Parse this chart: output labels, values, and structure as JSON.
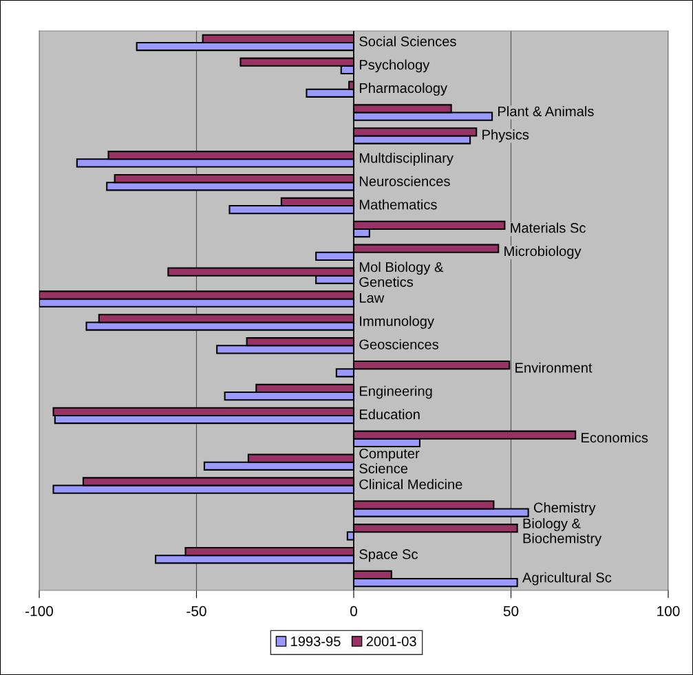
{
  "chart_data": {
    "type": "bar",
    "orientation": "horizontal",
    "categories": [
      "Social Sciences",
      "Psychology",
      "Pharmacology",
      "Plant & Animals",
      "Physics",
      "Multdisciplinary",
      "Neurosciences",
      "Mathematics",
      "Materials Sc",
      "Microbiology",
      "Mol Biology &\nGenetics",
      "Law",
      "Immunology",
      "Geosciences",
      "Environment",
      "Engineering",
      "Education",
      "Economics",
      "Computer\nScience",
      "Clinical Medicine",
      "Chemistry",
      "Biology &\nBiochemistry",
      "Space Sc",
      "Agricultural Sc"
    ],
    "series": [
      {
        "name": "1993-95",
        "color": "#9999ff",
        "values": [
          -69,
          -4,
          -15,
          44,
          37,
          -88,
          -78.5,
          -39.5,
          5,
          -12,
          -12,
          -100,
          -85,
          -43.5,
          -5.5,
          -41,
          -95,
          21,
          -47.5,
          -95.5,
          55.5,
          -2,
          -63,
          52
        ]
      },
      {
        "name": "2001-03",
        "color": "#993366",
        "values": [
          -48,
          -36,
          -1.5,
          31,
          39,
          -78,
          -76,
          -23,
          48,
          46,
          -59,
          -100,
          -81,
          -34,
          49.5,
          -31,
          -95.5,
          70.5,
          -33.5,
          -86,
          44.5,
          52,
          -53.5,
          12
        ]
      }
    ],
    "xlim": [
      -100,
      100
    ],
    "xticks": [
      -100,
      -50,
      0,
      50,
      100
    ],
    "grid": "x",
    "legend": "bottom"
  }
}
